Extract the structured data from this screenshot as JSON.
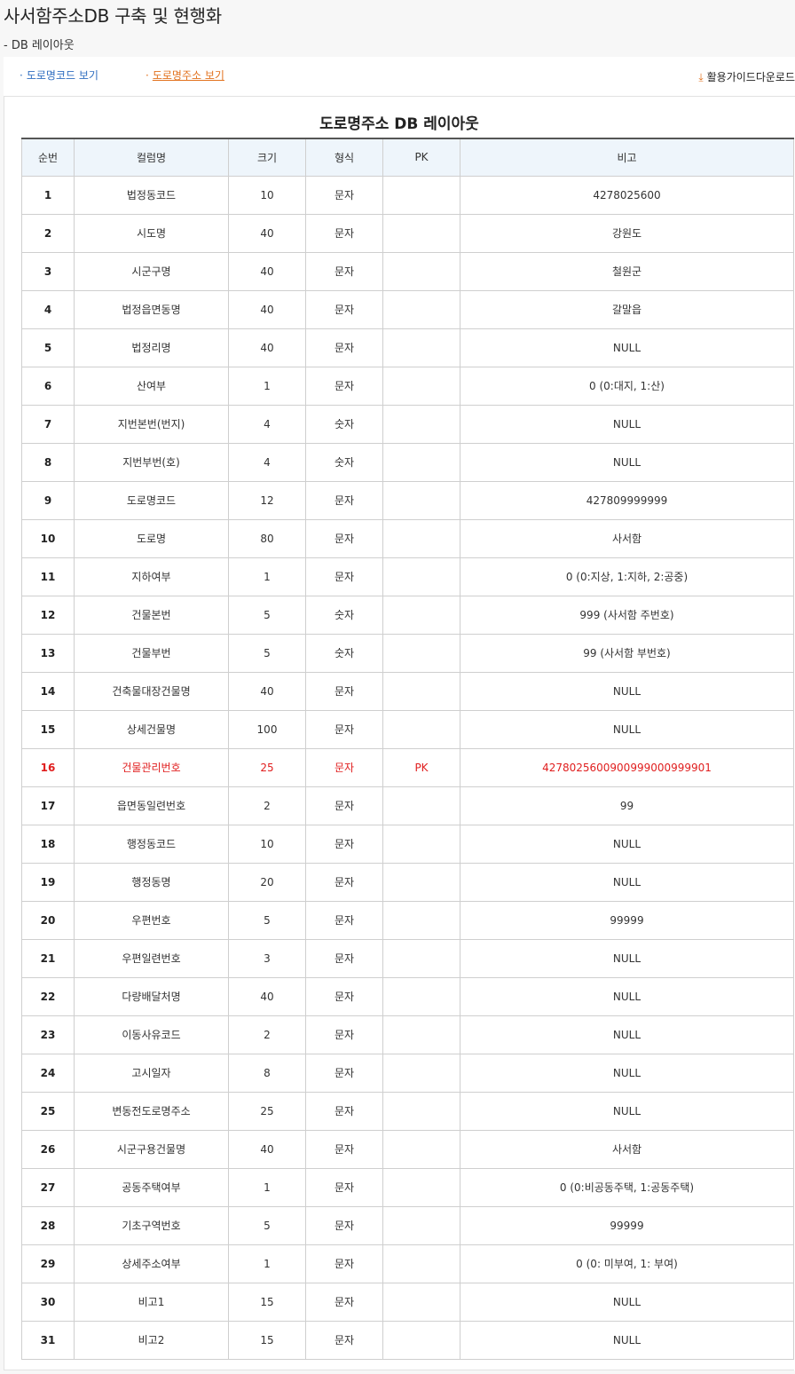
{
  "page": {
    "title": "사서함주소DB 구축 및 현행화",
    "subtitle": "- DB 레이아웃"
  },
  "tabs": {
    "road_code": "도로명코드 보기",
    "road_address": "도로명주소 보기",
    "bullet": "·",
    "active": "road_address"
  },
  "download": {
    "label": "활용가이드다운로드",
    "icon": "download-icon",
    "icon_glyph": "⤓"
  },
  "table": {
    "title": "도로명주소 DB 레이아웃",
    "headers": [
      "순번",
      "컬럼명",
      "크기",
      "형식",
      "PK",
      "비고"
    ],
    "rows": [
      [
        "1",
        "법정동코드",
        "10",
        "문자",
        "",
        "4278025600"
      ],
      [
        "2",
        "시도명",
        "40",
        "문자",
        "",
        "강원도"
      ],
      [
        "3",
        "시군구명",
        "40",
        "문자",
        "",
        "철원군"
      ],
      [
        "4",
        "법정읍면동명",
        "40",
        "문자",
        "",
        "갈말읍"
      ],
      [
        "5",
        "법정리명",
        "40",
        "문자",
        "",
        "NULL"
      ],
      [
        "6",
        "산여부",
        "1",
        "문자",
        "",
        "0 (0:대지, 1:산)"
      ],
      [
        "7",
        "지번본번(번지)",
        "4",
        "숫자",
        "",
        "NULL"
      ],
      [
        "8",
        "지번부번(호)",
        "4",
        "숫자",
        "",
        "NULL"
      ],
      [
        "9",
        "도로명코드",
        "12",
        "문자",
        "",
        "427809999999"
      ],
      [
        "10",
        "도로명",
        "80",
        "문자",
        "",
        "사서함"
      ],
      [
        "11",
        "지하여부",
        "1",
        "문자",
        "",
        "0 (0:지상, 1:지하, 2:공중)"
      ],
      [
        "12",
        "건물본번",
        "5",
        "숫자",
        "",
        "999 (사서함 주번호)"
      ],
      [
        "13",
        "건물부번",
        "5",
        "숫자",
        "",
        "99 (사서함 부번호)"
      ],
      [
        "14",
        "건축물대장건물명",
        "40",
        "문자",
        "",
        "NULL"
      ],
      [
        "15",
        "상세건물명",
        "100",
        "문자",
        "",
        "NULL"
      ],
      [
        "16",
        "건물관리번호",
        "25",
        "문자",
        "PK",
        "4278025600900999000999901"
      ],
      [
        "17",
        "읍면동일련번호",
        "2",
        "문자",
        "",
        "99"
      ],
      [
        "18",
        "행정동코드",
        "10",
        "문자",
        "",
        "NULL"
      ],
      [
        "19",
        "행정동명",
        "20",
        "문자",
        "",
        "NULL"
      ],
      [
        "20",
        "우편번호",
        "5",
        "문자",
        "",
        "99999"
      ],
      [
        "21",
        "우편일련번호",
        "3",
        "문자",
        "",
        "NULL"
      ],
      [
        "22",
        "다량배달처명",
        "40",
        "문자",
        "",
        "NULL"
      ],
      [
        "23",
        "이동사유코드",
        "2",
        "문자",
        "",
        "NULL"
      ],
      [
        "24",
        "고시일자",
        "8",
        "문자",
        "",
        "NULL"
      ],
      [
        "25",
        "변동전도로명주소",
        "25",
        "문자",
        "",
        "NULL"
      ],
      [
        "26",
        "시군구용건물명",
        "40",
        "문자",
        "",
        "사서함"
      ],
      [
        "27",
        "공동주택여부",
        "1",
        "문자",
        "",
        "0 (0:비공동주택, 1:공동주택)"
      ],
      [
        "28",
        "기초구역번호",
        "5",
        "문자",
        "",
        "99999"
      ],
      [
        "29",
        "상세주소여부",
        "1",
        "문자",
        "",
        "0 (0: 미부여, 1: 부여)"
      ],
      [
        "30",
        "비고1",
        "15",
        "문자",
        "",
        "NULL"
      ],
      [
        "31",
        "비고2",
        "15",
        "문자",
        "",
        "NULL"
      ]
    ],
    "highlight_row": 16,
    "highlight_color": "#e01e1e"
  },
  "colors": {
    "tab_link": "#2f6ec0",
    "tab_active": "#e2711d",
    "download_icon": "#e2711d",
    "header_bg": "#eef5fb"
  }
}
